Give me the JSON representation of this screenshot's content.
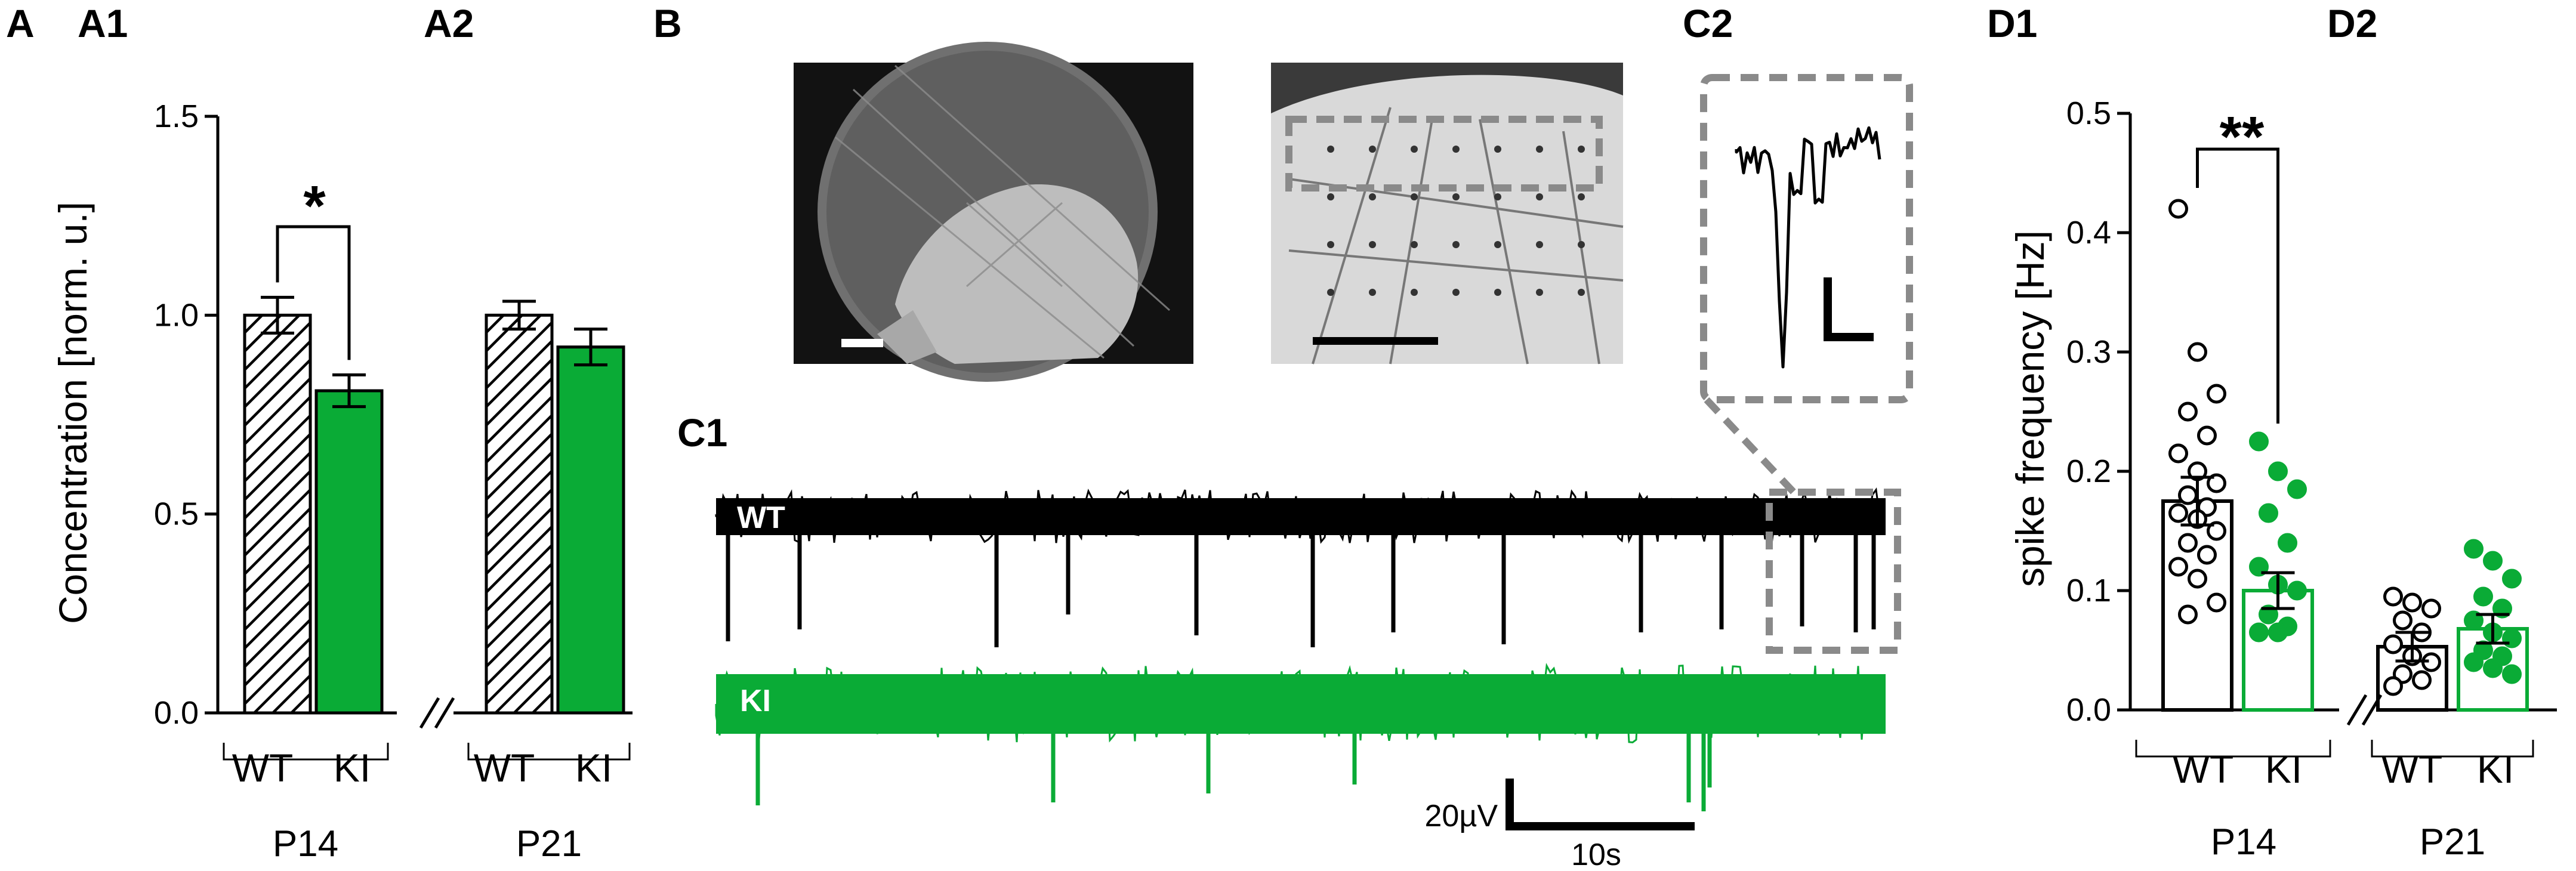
{
  "panel_labels": {
    "A": "A",
    "A1": "A1",
    "A2": "A2",
    "B": "B",
    "C1": "C1",
    "C2": "C2",
    "D1": "D1",
    "D2": "D2"
  },
  "colors": {
    "ki_green": "#0aab36",
    "wt_black": "#000000",
    "c2_box_gray": "#8a8a8a"
  },
  "chart_data": [
    {
      "id": "A",
      "type": "bar",
      "ylabel": "Concentration [norm. u.]",
      "ylim": [
        0,
        1.5
      ],
      "yticks": [
        "0.0",
        "0.5",
        "1.0",
        "1.5"
      ],
      "groups": [
        {
          "age": "P14",
          "categories": [
            "WT",
            "KI"
          ],
          "values": [
            1.0,
            0.81
          ],
          "errors": [
            0.045,
            0.04
          ],
          "significance": "*"
        },
        {
          "age": "P21",
          "categories": [
            "WT",
            "KI"
          ],
          "values": [
            1.0,
            0.92
          ],
          "errors": [
            0.035,
            0.045
          ],
          "significance": ""
        }
      ],
      "bar_styles": [
        "hatched-black",
        "solid-green"
      ],
      "axis_break": "//"
    },
    {
      "id": "D",
      "type": "bar",
      "ylabel": "spike frequency [Hz]",
      "ylim": [
        0,
        0.5
      ],
      "yticks": [
        "0.0",
        "0.1",
        "0.2",
        "0.3",
        "0.4",
        "0.5"
      ],
      "groups": [
        {
          "age": "P14",
          "categories": [
            "WT",
            "KI"
          ],
          "values": [
            0.175,
            0.1
          ],
          "errors": [
            0.02,
            0.015
          ],
          "significance": "**",
          "points": [
            [
              0.42,
              0.3,
              0.265,
              0.25,
              0.23,
              0.215,
              0.2,
              0.19,
              0.18,
              0.17,
              0.165,
              0.16,
              0.15,
              0.14,
              0.13,
              0.12,
              0.11,
              0.09,
              0.08
            ],
            [
              0.225,
              0.2,
              0.185,
              0.165,
              0.14,
              0.12,
              0.105,
              0.1,
              0.08,
              0.07,
              0.065,
              0.065
            ]
          ]
        },
        {
          "age": "P21",
          "categories": [
            "WT",
            "KI"
          ],
          "values": [
            0.053,
            0.068
          ],
          "errors": [
            0.012,
            0.012
          ],
          "significance": "",
          "points": [
            [
              0.095,
              0.09,
              0.085,
              0.075,
              0.065,
              0.055,
              0.045,
              0.04,
              0.03,
              0.025,
              0.02
            ],
            [
              0.135,
              0.125,
              0.11,
              0.095,
              0.085,
              0.075,
              0.065,
              0.06,
              0.05,
              0.045,
              0.04,
              0.035,
              0.03
            ]
          ]
        }
      ],
      "bar_styles": [
        "open-black",
        "open-green"
      ],
      "axis_break": "//"
    }
  ],
  "traces": {
    "wt_label": "WT",
    "ki_label": "KI",
    "wt_spike_count": 13,
    "ki_spike_count": 7,
    "scale_voltage": "20µV",
    "scale_time": "10s"
  }
}
